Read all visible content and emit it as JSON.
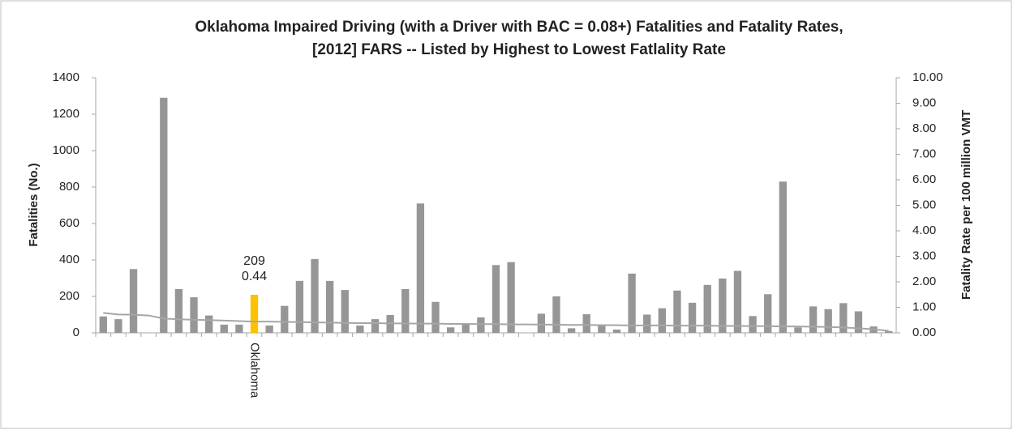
{
  "chart_data": {
    "type": "bar",
    "title": [
      "Oklahoma  Impaired Driving (with a Driver with BAC = 0.08+) Fatalities and Fatality Rates,",
      "[2012] FARS -- Listed by Highest to Lowest Fatlality Rate"
    ],
    "y_label": "Fatalities (No.)",
    "y2_label": "Fatality Rate per 100 million VMT",
    "categories": [
      null,
      null,
      null,
      null,
      null,
      null,
      null,
      null,
      null,
      null,
      "Oklahoma",
      null,
      null,
      null,
      null,
      null,
      null,
      null,
      null,
      null,
      null,
      null,
      null,
      null,
      null,
      null,
      null,
      null,
      null,
      null,
      null,
      null,
      null,
      null,
      null,
      null,
      null,
      null,
      null,
      null,
      null,
      null,
      null,
      null,
      null,
      null,
      null,
      null,
      null,
      null,
      null,
      null,
      null
    ],
    "highlight": {
      "category": "Oklahoma",
      "color": "#ffc000"
    },
    "series": [
      {
        "type": "bar",
        "color": "#969696",
        "values": [
          90,
          75,
          350,
          null,
          1290,
          240,
          195,
          95,
          45,
          45,
          209,
          40,
          148,
          285,
          405,
          285,
          235,
          40,
          75,
          98,
          240,
          710,
          170,
          30,
          45,
          85,
          372,
          388,
          null,
          105,
          200,
          25,
          102,
          45,
          18,
          325,
          100,
          135,
          232,
          165,
          263,
          298,
          340,
          92,
          212,
          830,
          30,
          145,
          130,
          163,
          118,
          35,
          10
        ],
        "value_labels": [
          null,
          null,
          null,
          null,
          null,
          null,
          null,
          null,
          null,
          null,
          "209",
          null,
          null,
          null,
          null,
          null,
          null,
          null,
          null,
          null,
          null,
          null,
          null,
          null,
          null,
          null,
          null,
          null,
          null,
          null,
          null,
          null,
          null,
          null,
          null,
          null,
          null,
          null,
          null,
          null,
          null,
          null,
          null,
          null,
          null,
          null,
          null,
          null,
          null,
          null,
          null,
          null,
          null
        ]
      },
      {
        "type": "line",
        "axis": "y2",
        "color": "#a6a6a6",
        "values": [
          0.78,
          0.72,
          0.71,
          0.68,
          0.56,
          0.53,
          0.51,
          0.5,
          0.48,
          0.46,
          0.44,
          0.44,
          0.43,
          0.42,
          0.41,
          0.4,
          0.39,
          0.38,
          0.38,
          0.37,
          0.37,
          0.36,
          0.36,
          0.35,
          0.35,
          0.34,
          0.34,
          0.33,
          0.33,
          0.32,
          0.32,
          0.31,
          0.31,
          0.3,
          0.3,
          0.29,
          0.29,
          0.29,
          0.28,
          0.28,
          0.28,
          0.27,
          0.27,
          0.26,
          0.26,
          0.25,
          0.25,
          0.24,
          0.23,
          0.21,
          0.18,
          0.14,
          0.08
        ],
        "value_labels": [
          null,
          null,
          null,
          null,
          null,
          null,
          null,
          null,
          null,
          null,
          "0.44",
          null,
          null,
          null,
          null,
          null,
          null,
          null,
          null,
          null,
          null,
          null,
          null,
          null,
          null,
          null,
          null,
          null,
          null,
          null,
          null,
          null,
          null,
          null,
          null,
          null,
          null,
          null,
          null,
          null,
          null,
          null,
          null,
          null,
          null,
          null,
          null,
          null,
          null,
          null,
          null,
          null,
          null
        ]
      }
    ],
    "ylim": [
      0,
      1400
    ],
    "yticks": [
      0,
      200,
      400,
      600,
      800,
      1000,
      1200,
      1400
    ],
    "y2lim": [
      0,
      10
    ],
    "y2ticks": [
      {
        "value": 0,
        "label": "0.00"
      },
      {
        "value": 1,
        "label": "1.00"
      },
      {
        "value": 2,
        "label": "2.00"
      },
      {
        "value": 3,
        "label": "3.00"
      },
      {
        "value": 4,
        "label": "4.00"
      },
      {
        "value": 5,
        "label": "5.00"
      },
      {
        "value": 6,
        "label": "6.00"
      },
      {
        "value": 7,
        "label": "7.00"
      },
      {
        "value": 8,
        "label": "8.00"
      },
      {
        "value": 9,
        "label": "9.00"
      },
      {
        "value": 10,
        "label": "10.00"
      }
    ],
    "grid": false
  }
}
